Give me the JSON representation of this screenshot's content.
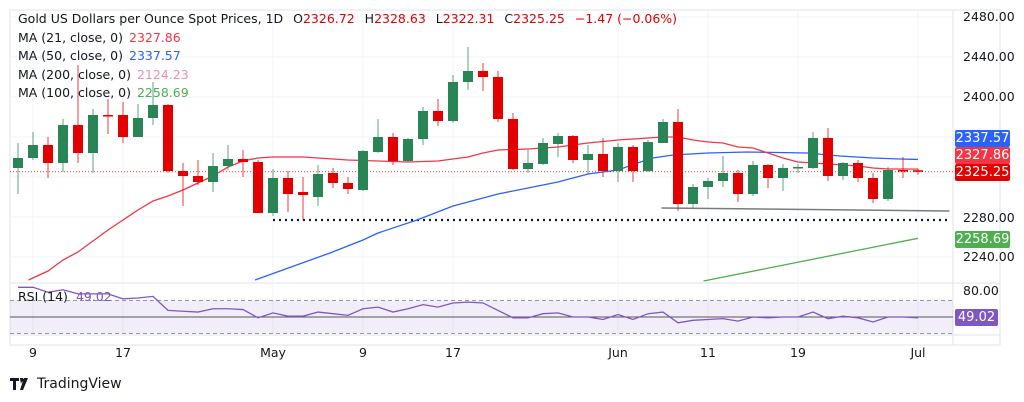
{
  "header": {
    "title": "Gold US Dollars per Ounce Spot Prices, 1D",
    "open_label": "O",
    "open": "2326.72",
    "high_label": "H",
    "high": "2328.63",
    "low_label": "L",
    "low": "2322.31",
    "close_label": "C",
    "close": "2325.25",
    "change": "−1.47 (−0.06%)"
  },
  "indicators": [
    {
      "label": "MA (21, close, 0)",
      "value": "2327.86",
      "color": "#f23645"
    },
    {
      "label": "MA (50, close, 0)",
      "value": "2337.57",
      "color": "#2962ff"
    },
    {
      "label": "MA (200, close, 0)",
      "value": "2124.23",
      "color": "#f48fb1"
    },
    {
      "label": "MA (100, close, 0)",
      "value": "2258.69",
      "color": "#4caf50"
    }
  ],
  "rsi": {
    "label": "RSI (14)",
    "value": "49.02",
    "color": "#7e57c2",
    "ticks": [
      "80.00"
    ],
    "upper": 70,
    "middle": 50,
    "lower": 30
  },
  "price_axis": {
    "ticks": [
      "2480.00",
      "2440.00",
      "2400.00",
      "2280.00",
      "2240.00"
    ]
  },
  "badges": [
    {
      "value": "2337.57",
      "color": "#2962ff"
    },
    {
      "value": "2327.86",
      "color": "#f23645"
    },
    {
      "value": "2325.25",
      "color": "#e30000"
    },
    {
      "value": "2258.69",
      "color": "#4caf50"
    }
  ],
  "branding": {
    "name": "TradingView"
  },
  "chart_data": {
    "type": "candlestick",
    "ylim": [
      2214,
      2487
    ],
    "rsi_ylim": [
      30,
      80
    ],
    "x_ticks": [
      {
        "label": "9",
        "bar": 1
      },
      {
        "label": "17",
        "bar": 7
      },
      {
        "label": "May",
        "bar": 17
      },
      {
        "label": "9",
        "bar": 23
      },
      {
        "label": "17",
        "bar": 29
      },
      {
        "label": "Jun",
        "bar": 40
      },
      {
        "label": "11",
        "bar": 46
      },
      {
        "label": "19",
        "bar": 52
      },
      {
        "label": "Jul",
        "bar": 60
      }
    ],
    "ohlc": [
      [
        2329,
        2354,
        2303,
        2339
      ],
      [
        2339,
        2365,
        2337,
        2352
      ],
      [
        2352,
        2360,
        2319,
        2334
      ],
      [
        2334,
        2378,
        2325,
        2372
      ],
      [
        2372,
        2432,
        2334,
        2344
      ],
      [
        2344,
        2388,
        2324,
        2382
      ],
      [
        2382,
        2398,
        2363,
        2381
      ],
      [
        2382,
        2395,
        2354,
        2360
      ],
      [
        2360,
        2393,
        2360,
        2379
      ],
      [
        2379,
        2415,
        2372,
        2392
      ],
      [
        2392,
        2393,
        2324,
        2326
      ],
      [
        2326,
        2334,
        2291,
        2321
      ],
      [
        2321,
        2337,
        2312,
        2315
      ],
      [
        2315,
        2344,
        2305,
        2331
      ],
      [
        2331,
        2352,
        2327,
        2338
      ],
      [
        2338,
        2347,
        2320,
        2335
      ],
      [
        2335,
        2337,
        2284,
        2284
      ],
      [
        2284,
        2328,
        2281,
        2319
      ],
      [
        2319,
        2326,
        2285,
        2303
      ],
      [
        2305,
        2320,
        2277,
        2302
      ],
      [
        2300,
        2332,
        2291,
        2323
      ],
      [
        2324,
        2329,
        2309,
        2314
      ],
      [
        2314,
        2320,
        2303,
        2308
      ],
      [
        2307,
        2347,
        2306,
        2346
      ],
      [
        2345,
        2378,
        2344,
        2360
      ],
      [
        2360,
        2364,
        2332,
        2336
      ],
      [
        2336,
        2359,
        2335,
        2358
      ],
      [
        2358,
        2390,
        2352,
        2386
      ],
      [
        2386,
        2398,
        2371,
        2376
      ],
      [
        2376,
        2422,
        2374,
        2415
      ],
      [
        2415,
        2450,
        2407,
        2426
      ],
      [
        2426,
        2434,
        2406,
        2420
      ],
      [
        2420,
        2426,
        2375,
        2378
      ],
      [
        2378,
        2384,
        2327,
        2328
      ],
      [
        2328,
        2348,
        2324,
        2334
      ],
      [
        2333,
        2359,
        2332,
        2354
      ],
      [
        2353,
        2364,
        2340,
        2361
      ],
      [
        2361,
        2362,
        2334,
        2337
      ],
      [
        2337,
        2352,
        2323,
        2343
      ],
      [
        2343,
        2359,
        2320,
        2326
      ],
      [
        2326,
        2354,
        2315,
        2350
      ],
      [
        2350,
        2352,
        2315,
        2326
      ],
      [
        2326,
        2357,
        2325,
        2355
      ],
      [
        2354,
        2378,
        2354,
        2375
      ],
      [
        2375,
        2388,
        2286,
        2293
      ],
      [
        2293,
        2313,
        2289,
        2310
      ],
      [
        2310,
        2319,
        2298,
        2316
      ],
      [
        2316,
        2341,
        2310,
        2324
      ],
      [
        2324,
        2327,
        2295,
        2303
      ],
      [
        2303,
        2336,
        2301,
        2332
      ],
      [
        2332,
        2333,
        2309,
        2319
      ],
      [
        2319,
        2333,
        2306,
        2329
      ],
      [
        2329,
        2333,
        2324,
        2330
      ],
      [
        2329,
        2365,
        2328,
        2359
      ],
      [
        2359,
        2369,
        2316,
        2321
      ],
      [
        2321,
        2335,
        2317,
        2334
      ],
      [
        2334,
        2337,
        2315,
        2319
      ],
      [
        2319,
        2324,
        2294,
        2298
      ],
      [
        2298,
        2330,
        2296,
        2327
      ],
      [
        2327,
        2340,
        2319,
        2326
      ],
      [
        2326.72,
        2328.63,
        2322.31,
        2325.25
      ]
    ],
    "ma21": [
      [
        0.7,
        2217
      ],
      [
        2,
        2226
      ],
      [
        3,
        2237
      ],
      [
        4,
        2245
      ],
      [
        5,
        2256
      ],
      [
        6,
        2267
      ],
      [
        7,
        2277
      ],
      [
        8,
        2287
      ],
      [
        9,
        2296
      ],
      [
        10,
        2301
      ],
      [
        11,
        2307
      ],
      [
        12,
        2314
      ],
      [
        13,
        2321
      ],
      [
        14,
        2330
      ],
      [
        15,
        2336
      ],
      [
        16,
        2339
      ],
      [
        17,
        2340
      ],
      [
        19,
        2340
      ],
      [
        21,
        2338
      ],
      [
        22,
        2337
      ],
      [
        24,
        2336
      ],
      [
        26,
        2335
      ],
      [
        28,
        2336
      ],
      [
        30,
        2340
      ],
      [
        31,
        2344
      ],
      [
        32,
        2347
      ],
      [
        34,
        2348
      ],
      [
        36,
        2350
      ],
      [
        38,
        2354
      ],
      [
        40,
        2357
      ],
      [
        42,
        2359
      ],
      [
        43,
        2360
      ],
      [
        44,
        2360
      ],
      [
        45,
        2357
      ],
      [
        46,
        2355
      ],
      [
        47,
        2354
      ],
      [
        48,
        2350
      ],
      [
        49,
        2349
      ],
      [
        50,
        2344
      ],
      [
        51,
        2339
      ],
      [
        52,
        2335
      ],
      [
        53,
        2334
      ],
      [
        54,
        2333
      ],
      [
        55,
        2332
      ],
      [
        56,
        2331
      ],
      [
        57,
        2329
      ],
      [
        58,
        2328
      ],
      [
        59,
        2328
      ],
      [
        60,
        2327.86
      ]
    ],
    "ma50": [
      [
        15.8,
        2217
      ],
      [
        20.8,
        2244
      ],
      [
        23,
        2257
      ],
      [
        24,
        2264
      ],
      [
        26.6,
        2277
      ],
      [
        29,
        2291
      ],
      [
        32,
        2303
      ],
      [
        34,
        2309
      ],
      [
        36,
        2315
      ],
      [
        38,
        2323
      ],
      [
        40,
        2327
      ],
      [
        41.5,
        2335
      ],
      [
        42.3,
        2339
      ],
      [
        43.7,
        2342
      ],
      [
        46,
        2344
      ],
      [
        48.6,
        2345
      ],
      [
        52.6,
        2344
      ],
      [
        54.8,
        2341
      ],
      [
        57,
        2339
      ],
      [
        58.8,
        2338
      ],
      [
        60,
        2337.57
      ]
    ],
    "ma100": [
      [
        45.7,
        2216
      ],
      [
        60,
        2258.69
      ]
    ],
    "support_dotted": {
      "from_bar": 17,
      "to_bar": 62.1,
      "price": 2277
    },
    "support_line": {
      "from_bar": 42.9,
      "from_price": 2289,
      "to_bar": 62.1,
      "to_price": 2286
    },
    "last_price": 2325.25,
    "rsi_values": [
      86,
      86,
      80,
      83,
      78,
      78,
      78,
      72,
      73,
      75,
      58,
      57,
      56,
      60,
      60,
      59,
      49,
      55,
      51,
      51,
      56,
      54,
      52,
      60,
      62,
      56,
      60,
      65,
      62,
      67,
      68,
      67,
      58,
      49,
      49,
      54,
      55,
      50,
      50,
      47,
      53,
      47,
      54,
      56,
      43,
      46,
      47,
      48,
      45,
      50,
      49,
      50,
      50,
      56,
      48,
      51,
      49,
      44,
      50,
      50,
      49.02
    ],
    "colors": {
      "up": "#2a8556",
      "down": "#e30000",
      "ma21": "#f23645",
      "ma50": "#2962ff",
      "ma100": "#4caf50",
      "rsi": "#7e57c2"
    }
  }
}
